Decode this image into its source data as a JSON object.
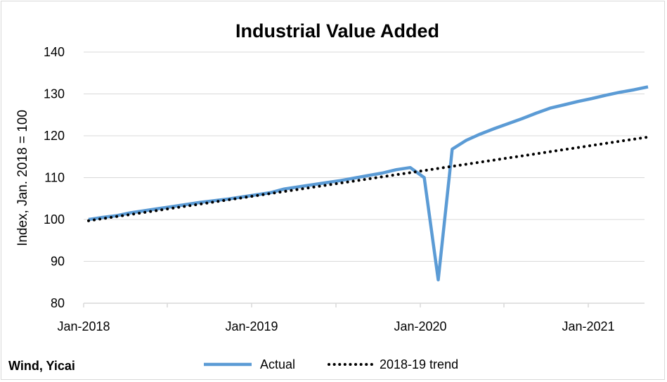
{
  "chart_data": {
    "type": "line",
    "title": "Industrial Value Added",
    "ylabel": "Index, Jan. 2018 = 100",
    "xlabel": "",
    "ylim": [
      80,
      140
    ],
    "yticks": [
      80,
      90,
      100,
      110,
      120,
      130,
      140
    ],
    "xticks": [
      "Jan-2018",
      "Jan-2019",
      "Jan-2020",
      "Jan-2021"
    ],
    "x": [
      "2018-01",
      "2018-02",
      "2018-03",
      "2018-04",
      "2018-05",
      "2018-06",
      "2018-07",
      "2018-08",
      "2018-09",
      "2018-10",
      "2018-11",
      "2018-12",
      "2019-01",
      "2019-02",
      "2019-03",
      "2019-04",
      "2019-05",
      "2019-06",
      "2019-07",
      "2019-08",
      "2019-09",
      "2019-10",
      "2019-11",
      "2019-12",
      "2020-01",
      "2020-02",
      "2020-03",
      "2020-04",
      "2020-05",
      "2020-06",
      "2020-07",
      "2020-08",
      "2020-09",
      "2020-10",
      "2020-11",
      "2020-12",
      "2021-01",
      "2021-02",
      "2021-03",
      "2021-04",
      "2021-05"
    ],
    "series": [
      {
        "name": "Actual",
        "color": "#5b9bd5",
        "style": "solid",
        "values": [
          100.0,
          100.5,
          100.9,
          101.6,
          102.1,
          102.6,
          103.1,
          103.6,
          104.1,
          104.5,
          104.9,
          105.4,
          105.9,
          106.4,
          107.3,
          107.8,
          108.3,
          108.8,
          109.3,
          109.9,
          110.5,
          111.1,
          111.9,
          112.4,
          110.0,
          85.6,
          116.8,
          118.9,
          120.4,
          121.7,
          122.9,
          124.1,
          125.4,
          126.6,
          127.4,
          128.2,
          128.9,
          129.7,
          130.4,
          131.0,
          131.7
        ]
      },
      {
        "name": "2018-19 trend",
        "color": "#000000",
        "style": "dotted",
        "values": [
          99.7,
          100.2,
          100.7,
          101.2,
          101.7,
          102.2,
          102.7,
          103.2,
          103.7,
          104.2,
          104.7,
          105.2,
          105.7,
          106.2,
          106.7,
          107.2,
          107.7,
          108.2,
          108.7,
          109.2,
          109.7,
          110.2,
          110.7,
          111.2,
          111.7,
          112.2,
          112.7,
          113.2,
          113.7,
          114.2,
          114.7,
          115.2,
          115.7,
          116.2,
          116.7,
          117.2,
          117.7,
          118.2,
          118.7,
          119.2,
          119.7
        ]
      }
    ],
    "grid": true,
    "legend": "bottom",
    "source": "Wind, Yicai"
  }
}
